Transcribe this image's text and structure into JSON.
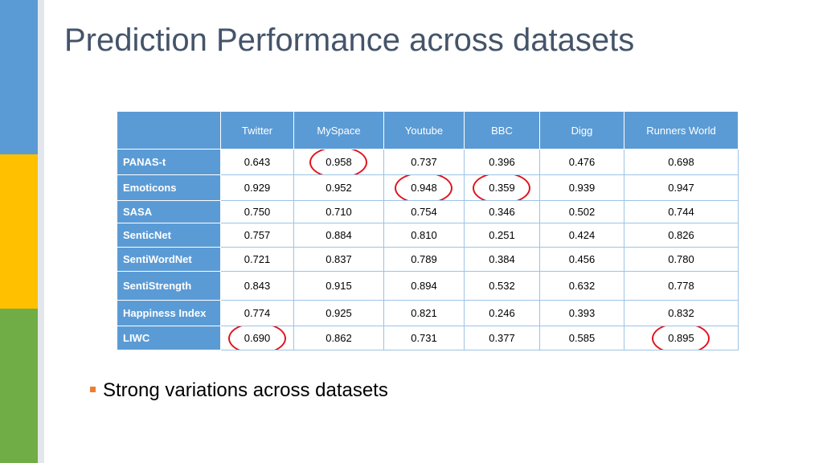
{
  "slide": {
    "title": "Prediction Performance across datasets",
    "accent_colors": {
      "side_top": "#5b9bd5",
      "side_middle": "#ffc000",
      "side_bottom": "#70ad47",
      "header_fill": "#5b9bd5",
      "circle": "#e0141c",
      "bullet": "#ed7d31"
    }
  },
  "table": {
    "corner": "",
    "columns": [
      "Twitter",
      "MySpace",
      "Youtube",
      "BBC",
      "Digg",
      "Runners World"
    ],
    "rows": [
      {
        "method": "PANAS-t",
        "values": [
          "0.643",
          "0.958",
          "0.737",
          "0.396",
          "0.476",
          "0.698"
        ],
        "circled": [
          false,
          true,
          false,
          false,
          false,
          false
        ]
      },
      {
        "method": "Emoticons",
        "values": [
          "0.929",
          "0.952",
          "0.948",
          "0.359",
          "0.939",
          "0.947"
        ],
        "circled": [
          false,
          false,
          true,
          true,
          false,
          false
        ]
      },
      {
        "method": "SASA",
        "values": [
          "0.750",
          "0.710",
          "0.754",
          "0.346",
          "0.502",
          "0.744"
        ],
        "circled": [
          false,
          false,
          false,
          false,
          false,
          false
        ]
      },
      {
        "method": "SenticNet",
        "values": [
          "0.757",
          "0.884",
          "0.810",
          "0.251",
          "0.424",
          "0.826"
        ],
        "circled": [
          false,
          false,
          false,
          false,
          false,
          false
        ]
      },
      {
        "method": "SentiWordNet",
        "values": [
          "0.721",
          "0.837",
          "0.789",
          "0.384",
          "0.456",
          "0.780"
        ],
        "circled": [
          false,
          false,
          false,
          false,
          false,
          false
        ]
      },
      {
        "method": "SentiStrength",
        "values": [
          "0.843",
          "0.915",
          "0.894",
          "0.532",
          "0.632",
          "0.778"
        ],
        "circled": [
          false,
          false,
          false,
          false,
          false,
          false
        ]
      },
      {
        "method": "Happiness Index",
        "values": [
          "0.774",
          "0.925",
          "0.821",
          "0.246",
          "0.393",
          "0.832"
        ],
        "circled": [
          false,
          false,
          false,
          false,
          false,
          false
        ]
      },
      {
        "method": "LIWC",
        "values": [
          "0.690",
          "0.862",
          "0.731",
          "0.377",
          "0.585",
          "0.895"
        ],
        "circled": [
          true,
          false,
          false,
          false,
          false,
          true
        ]
      }
    ]
  },
  "bullets": [
    "Strong variations across datasets"
  ]
}
